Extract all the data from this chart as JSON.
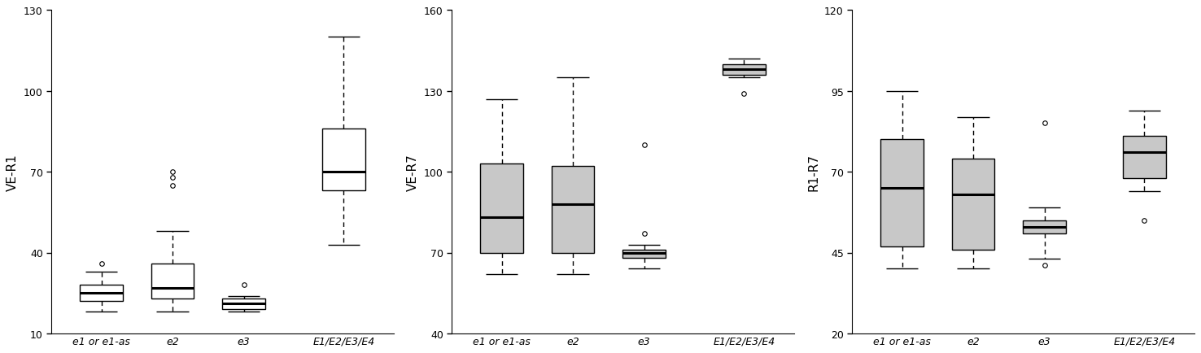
{
  "panels": [
    {
      "ylabel": "VE-R1",
      "ylim": [
        10,
        130
      ],
      "yticks": [
        10,
        40,
        70,
        100,
        130
      ],
      "box_color": "white",
      "groups": [
        {
          "label": "e1 or e1-as",
          "q1": 22,
          "median": 25,
          "q3": 28,
          "whisker_lo": 18,
          "whisker_hi": 33,
          "outliers": [
            36
          ]
        },
        {
          "label": "e2",
          "q1": 23,
          "median": 27,
          "q3": 36,
          "whisker_lo": 18,
          "whisker_hi": 48,
          "outliers": [
            65,
            68,
            70
          ]
        },
        {
          "label": "e3",
          "q1": 19,
          "median": 21,
          "q3": 23,
          "whisker_lo": 18,
          "whisker_hi": 24,
          "outliers": [
            28
          ]
        },
        {
          "label": "E1/E2/E3/E4",
          "q1": 63,
          "median": 70,
          "q3": 86,
          "whisker_lo": 43,
          "whisker_hi": 120,
          "outliers": []
        }
      ]
    },
    {
      "ylabel": "VE-R7",
      "ylim": [
        40,
        160
      ],
      "yticks": [
        40,
        70,
        100,
        130,
        160
      ],
      "box_color": "#c8c8c8",
      "groups": [
        {
          "label": "e1 or e1-as",
          "q1": 70,
          "median": 83,
          "q3": 103,
          "whisker_lo": 62,
          "whisker_hi": 127,
          "outliers": []
        },
        {
          "label": "e2",
          "q1": 70,
          "median": 88,
          "q3": 102,
          "whisker_lo": 62,
          "whisker_hi": 135,
          "outliers": []
        },
        {
          "label": "e3",
          "q1": 68,
          "median": 70,
          "q3": 71,
          "whisker_lo": 64,
          "whisker_hi": 73,
          "outliers": [
            77,
            110
          ]
        },
        {
          "label": "E1/E2/E3/E4",
          "q1": 136,
          "median": 138,
          "q3": 140,
          "whisker_lo": 135,
          "whisker_hi": 142,
          "outliers": [
            129
          ]
        }
      ]
    },
    {
      "ylabel": "R1-R7",
      "ylim": [
        20,
        120
      ],
      "yticks": [
        20,
        45,
        70,
        95,
        120
      ],
      "box_color": "#c8c8c8",
      "groups": [
        {
          "label": "e1 or e1-as",
          "q1": 47,
          "median": 65,
          "q3": 80,
          "whisker_lo": 40,
          "whisker_hi": 95,
          "outliers": []
        },
        {
          "label": "e2",
          "q1": 46,
          "median": 63,
          "q3": 74,
          "whisker_lo": 40,
          "whisker_hi": 87,
          "outliers": []
        },
        {
          "label": "e3",
          "q1": 51,
          "median": 53,
          "q3": 55,
          "whisker_lo": 43,
          "whisker_hi": 59,
          "outliers": [
            41,
            85
          ]
        },
        {
          "label": "E1/E2/E3/E4",
          "q1": 68,
          "median": 76,
          "q3": 81,
          "whisker_lo": 64,
          "whisker_hi": 89,
          "outliers": [
            55
          ]
        }
      ]
    }
  ],
  "x_positions": [
    1.0,
    2.0,
    3.0,
    4.4
  ],
  "bracket_x_start": 0.6,
  "bracket_x_end": 3.4,
  "xlim": [
    0.3,
    5.1
  ],
  "box_width": 0.6,
  "linewidth": 1.0,
  "median_linewidth": 2.2,
  "outlier_markersize": 4,
  "background_color": "white",
  "tick_fontsize": 9,
  "label_fontsize": 11
}
